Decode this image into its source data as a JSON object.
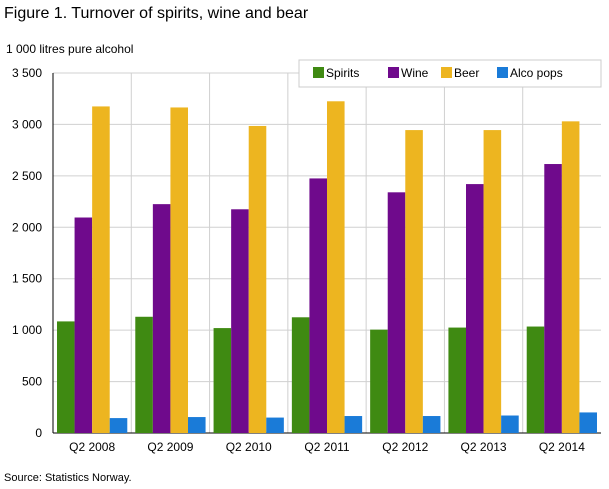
{
  "title": "Figure 1. Turnover of spirits, wine and bear",
  "unit_label": "1 000 litres  pure alcohol",
  "source": "Source: Statistics Norway.",
  "chart_data": {
    "type": "bar",
    "categories": [
      "Q2 2008",
      "Q2 2009",
      "Q2 2010",
      "Q2 2011",
      "Q2 2012",
      "Q2 2013",
      "Q2 2014"
    ],
    "series": [
      {
        "name": "Spirits",
        "color": "#3f8a12",
        "values": [
          1085,
          1130,
          1020,
          1125,
          1005,
          1025,
          1035
        ]
      },
      {
        "name": "Wine",
        "color": "#6f0a8c",
        "values": [
          2095,
          2225,
          2175,
          2475,
          2340,
          2420,
          2615
        ]
      },
      {
        "name": "Beer",
        "color": "#edb520",
        "values": [
          3175,
          3165,
          2985,
          3225,
          2945,
          2945,
          3030
        ]
      },
      {
        "name": "Alco pops",
        "color": "#1a7bd8",
        "values": [
          145,
          155,
          150,
          165,
          165,
          170,
          200
        ]
      }
    ],
    "yticks": [
      0,
      500,
      1000,
      1500,
      2000,
      2500,
      3000,
      3500
    ],
    "ytick_labels": [
      "0",
      "500",
      "1 000",
      "1 500",
      "2 000",
      "2 500",
      "3 000",
      "3 500"
    ],
    "ylim": [
      0,
      3500
    ],
    "grid": true,
    "legend": "top-right"
  }
}
